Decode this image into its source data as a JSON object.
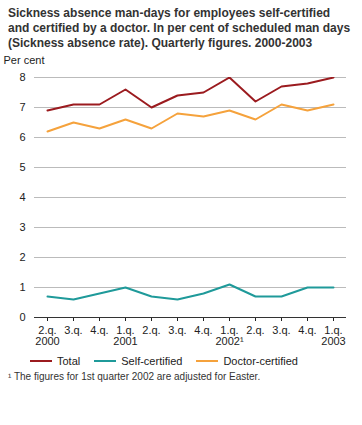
{
  "chart_data": {
    "type": "line",
    "title": "Sickness absence man-days for employees self-certified and certified by a doctor. In per cent of scheduled man days (Sickness absence rate). Quarterly figures. 2000-2003",
    "y_label": "Per cent",
    "categories": [
      "2.q.\n2000",
      "3.q.",
      "4.q.",
      "1.q.\n2001",
      "2.q.",
      "3.q.",
      "4.q.",
      "1.q.\n2002¹",
      "2.q.",
      "3.q.",
      "4.q.",
      "1.q.\n2003"
    ],
    "series": [
      {
        "name": "Total",
        "color": "#9b1b1f",
        "values": [
          6.9,
          7.1,
          7.1,
          7.6,
          7.0,
          7.4,
          7.5,
          8.0,
          7.2,
          7.7,
          7.8,
          8.0
        ]
      },
      {
        "name": "Self-certified",
        "color": "#1f9a9a",
        "values": [
          0.7,
          0.6,
          0.8,
          1.0,
          0.7,
          0.6,
          0.8,
          1.1,
          0.7,
          0.7,
          1.0,
          1.0
        ]
      },
      {
        "name": "Doctor-certified",
        "color": "#f5a23c",
        "values": [
          6.2,
          6.5,
          6.3,
          6.6,
          6.3,
          6.8,
          6.7,
          6.9,
          6.6,
          7.1,
          6.9,
          7.1
        ]
      }
    ],
    "ylim": [
      0,
      8
    ],
    "yticks": [
      0,
      1,
      2,
      3,
      4,
      5,
      6,
      7,
      8
    ],
    "grid": true,
    "legend": "bottom",
    "footnote": "¹ The figures for 1st quarter 2002 are adjusted for Easter."
  }
}
